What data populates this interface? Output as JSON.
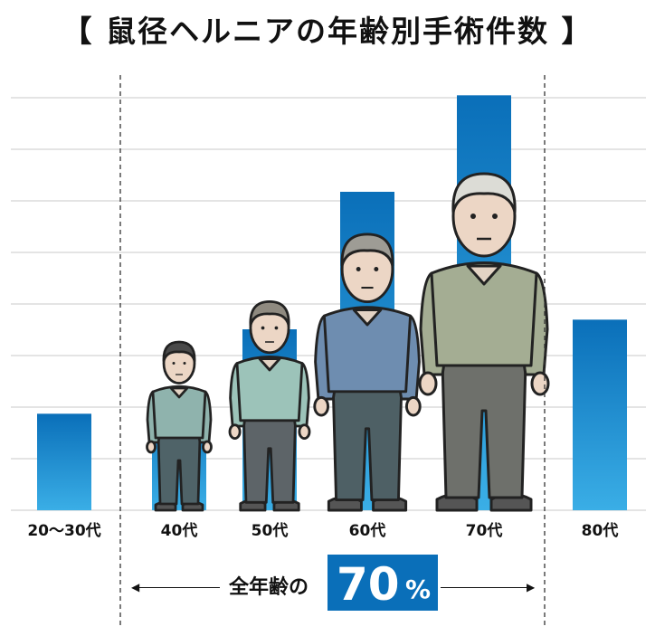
{
  "title": "【 鼠径ヘルニアの年齢別手術件数 】",
  "summary": {
    "prefix": "全年齢の",
    "value": "70",
    "unit": "%"
  },
  "colors": {
    "bar_top": "#0a6fb9",
    "bar_bottom": "#3aaee6",
    "grid": "#c8c8c8",
    "highlight_box": "#0a6fb9"
  },
  "chart_data": {
    "type": "bar",
    "title": "【 鼠径ヘルニアの年齢別手術件数 】",
    "categories": [
      "20～30代",
      "40代",
      "50代",
      "60代",
      "70代",
      "80代"
    ],
    "values": [
      2.0,
      2.45,
      3.75,
      6.6,
      8.6,
      3.95
    ],
    "ylim": [
      0,
      9
    ],
    "grid": true,
    "y_tick_labels": false,
    "highlight_range": [
      "40代",
      "70代"
    ],
    "highlight_label": "全年齢の70%"
  }
}
